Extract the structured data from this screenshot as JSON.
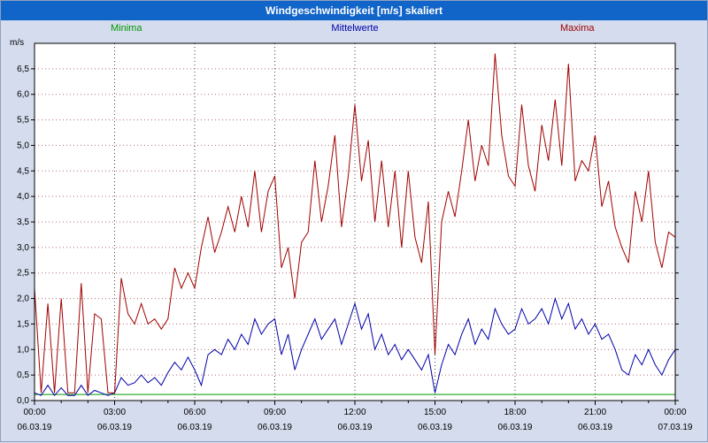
{
  "window": {
    "title": "Windgeschwindigkeit [m/s] skaliert",
    "titlebar_color": "#1164c8"
  },
  "chart_data": {
    "type": "line",
    "title": "Windgeschwindigkeit [m/s] skaliert",
    "ylabel": "m/s",
    "xlabel": "",
    "grid": "dashed",
    "legend_position": "top",
    "xlim_hours": [
      0,
      24
    ],
    "ylim": [
      0,
      7
    ],
    "x_step_hours": 0.25,
    "x_minor_step_hours": 1,
    "y_ticks": [
      {
        "value": 0.0,
        "label": "0,0"
      },
      {
        "value": 0.5,
        "label": "0,5"
      },
      {
        "value": 1.0,
        "label": "1,0"
      },
      {
        "value": 1.5,
        "label": "1,5"
      },
      {
        "value": 2.0,
        "label": "2,0"
      },
      {
        "value": 2.5,
        "label": "2,5"
      },
      {
        "value": 3.0,
        "label": "3,0"
      },
      {
        "value": 3.5,
        "label": "3,5"
      },
      {
        "value": 4.0,
        "label": "4,0"
      },
      {
        "value": 4.5,
        "label": "4,5"
      },
      {
        "value": 5.0,
        "label": "5,0"
      },
      {
        "value": 5.5,
        "label": "5,5"
      },
      {
        "value": 6.0,
        "label": "6,0"
      },
      {
        "value": 6.5,
        "label": "6,5"
      }
    ],
    "x_ticks": [
      {
        "hour": 0,
        "label": "00:00",
        "date": "06.03.19"
      },
      {
        "hour": 3,
        "label": "03:00",
        "date": "06.03.19"
      },
      {
        "hour": 6,
        "label": "06:00",
        "date": "06.03.19"
      },
      {
        "hour": 9,
        "label": "09:00",
        "date": "06.03.19"
      },
      {
        "hour": 12,
        "label": "12:00",
        "date": "06.03.19"
      },
      {
        "hour": 15,
        "label": "15:00",
        "date": "06.03.19"
      },
      {
        "hour": 18,
        "label": "18:00",
        "date": "06.03.19"
      },
      {
        "hour": 21,
        "label": "21:00",
        "date": "06.03.19"
      },
      {
        "hour": 24,
        "label": "00:00",
        "date": "07.03.19"
      }
    ],
    "series": [
      {
        "name": "Minima",
        "color": "#009900",
        "constant": 0.12
      },
      {
        "name": "Mittelwerte",
        "color": "#0000a8",
        "values": [
          0.15,
          0.1,
          0.3,
          0.1,
          0.25,
          0.1,
          0.1,
          0.3,
          0.1,
          0.2,
          0.15,
          0.1,
          0.15,
          0.45,
          0.3,
          0.35,
          0.5,
          0.35,
          0.45,
          0.3,
          0.55,
          0.75,
          0.6,
          0.85,
          0.6,
          0.3,
          0.9,
          1.0,
          0.9,
          1.2,
          1.0,
          1.3,
          1.1,
          1.6,
          1.3,
          1.5,
          1.6,
          0.9,
          1.3,
          0.6,
          1.0,
          1.3,
          1.6,
          1.2,
          1.4,
          1.6,
          1.1,
          1.5,
          1.9,
          1.4,
          1.7,
          1.0,
          1.3,
          0.9,
          1.1,
          0.8,
          1.0,
          0.8,
          0.6,
          0.9,
          0.15,
          0.7,
          1.1,
          0.9,
          1.3,
          1.6,
          1.1,
          1.4,
          1.2,
          1.8,
          1.5,
          1.3,
          1.4,
          1.8,
          1.5,
          1.6,
          1.8,
          1.5,
          2.0,
          1.6,
          1.9,
          1.4,
          1.6,
          1.3,
          1.5,
          1.2,
          1.3,
          1.0,
          0.6,
          0.5,
          0.9,
          0.7,
          1.0,
          0.7,
          0.5,
          0.8,
          1.0
        ]
      },
      {
        "name": "Maxima",
        "color": "#a00000",
        "values": [
          2.2,
          0.15,
          1.9,
          0.15,
          2.0,
          0.15,
          0.15,
          2.3,
          0.15,
          1.7,
          1.6,
          0.15,
          0.15,
          2.4,
          1.7,
          1.5,
          1.9,
          1.5,
          1.6,
          1.4,
          1.6,
          2.6,
          2.2,
          2.5,
          2.2,
          3.0,
          3.6,
          2.9,
          3.3,
          3.8,
          3.3,
          4.0,
          3.4,
          4.5,
          3.3,
          4.1,
          4.4,
          2.6,
          3.0,
          2.0,
          3.1,
          3.3,
          4.7,
          3.5,
          4.2,
          5.2,
          3.4,
          4.4,
          5.8,
          4.3,
          5.1,
          3.5,
          4.7,
          3.4,
          4.5,
          3.0,
          4.5,
          3.2,
          2.7,
          3.9,
          0.9,
          3.5,
          4.1,
          3.6,
          4.5,
          5.5,
          4.3,
          5.0,
          4.6,
          6.8,
          5.2,
          4.4,
          4.2,
          5.8,
          4.6,
          4.1,
          5.4,
          4.7,
          5.9,
          4.6,
          6.6,
          4.3,
          4.7,
          4.5,
          5.2,
          3.8,
          4.3,
          3.4,
          3.0,
          2.7,
          4.1,
          3.5,
          4.5,
          3.1,
          2.6,
          3.3,
          3.2
        ]
      }
    ],
    "colors": {
      "h_grid": "#b06a6a",
      "v_grid": "#404040",
      "plot_border": "#000000",
      "plot_bg": "#ffffff",
      "margin_bg": "#d4dcee"
    }
  }
}
